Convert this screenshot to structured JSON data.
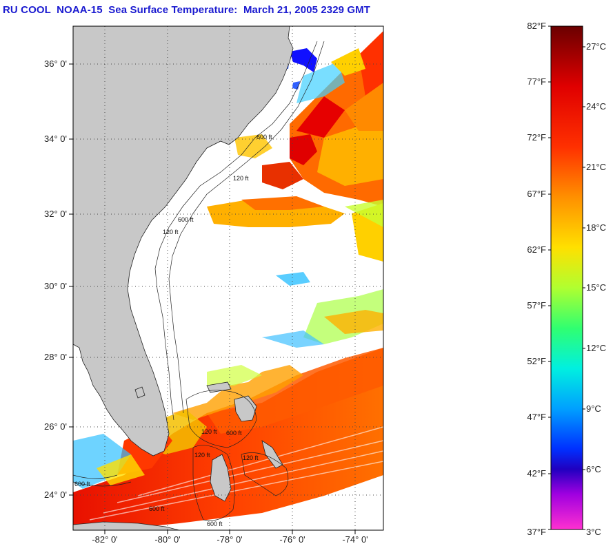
{
  "title": "RU COOL  NOAA-15  Sea Surface Temperature:  March 21, 2005 2329 GMT",
  "map": {
    "lat_labels": [
      "36° 0'",
      "34° 0'",
      "32° 0'",
      "30° 0'",
      "28° 0'",
      "26° 0'",
      "24° 0'"
    ],
    "lon_labels": [
      "-82° 0'",
      "-80° 0'",
      "-78° 0'",
      "-76° 0'",
      "-74° 0'"
    ],
    "contour_labels": [
      "600 ft",
      "120 ft",
      "600 ft",
      "120 ft",
      "120 ft",
      "600 ft",
      "600 ft",
      "120 ft",
      "600 ft",
      "600 ft",
      "120 ft"
    ],
    "colors": {
      "land": "#c8c8c8",
      "cloud": "#ffffff",
      "grid": "#555555"
    }
  },
  "colorbar": {
    "f_labels": [
      "82°F",
      "77°F",
      "72°F",
      "67°F",
      "62°F",
      "57°F",
      "52°F",
      "47°F",
      "42°F",
      "37°F"
    ],
    "c_labels": [
      "27°C",
      "24°C",
      "21°C",
      "18°C",
      "15°C",
      "12°C",
      "9°C",
      "6°C",
      "3°C"
    ],
    "colors_top_to_bottom": [
      "#7a0000",
      "#ff0000",
      "#ff8000",
      "#ffd000",
      "#c0ff30",
      "#30ff80",
      "#00e0ff",
      "#0080ff",
      "#0000ff",
      "#ff00ff"
    ]
  }
}
